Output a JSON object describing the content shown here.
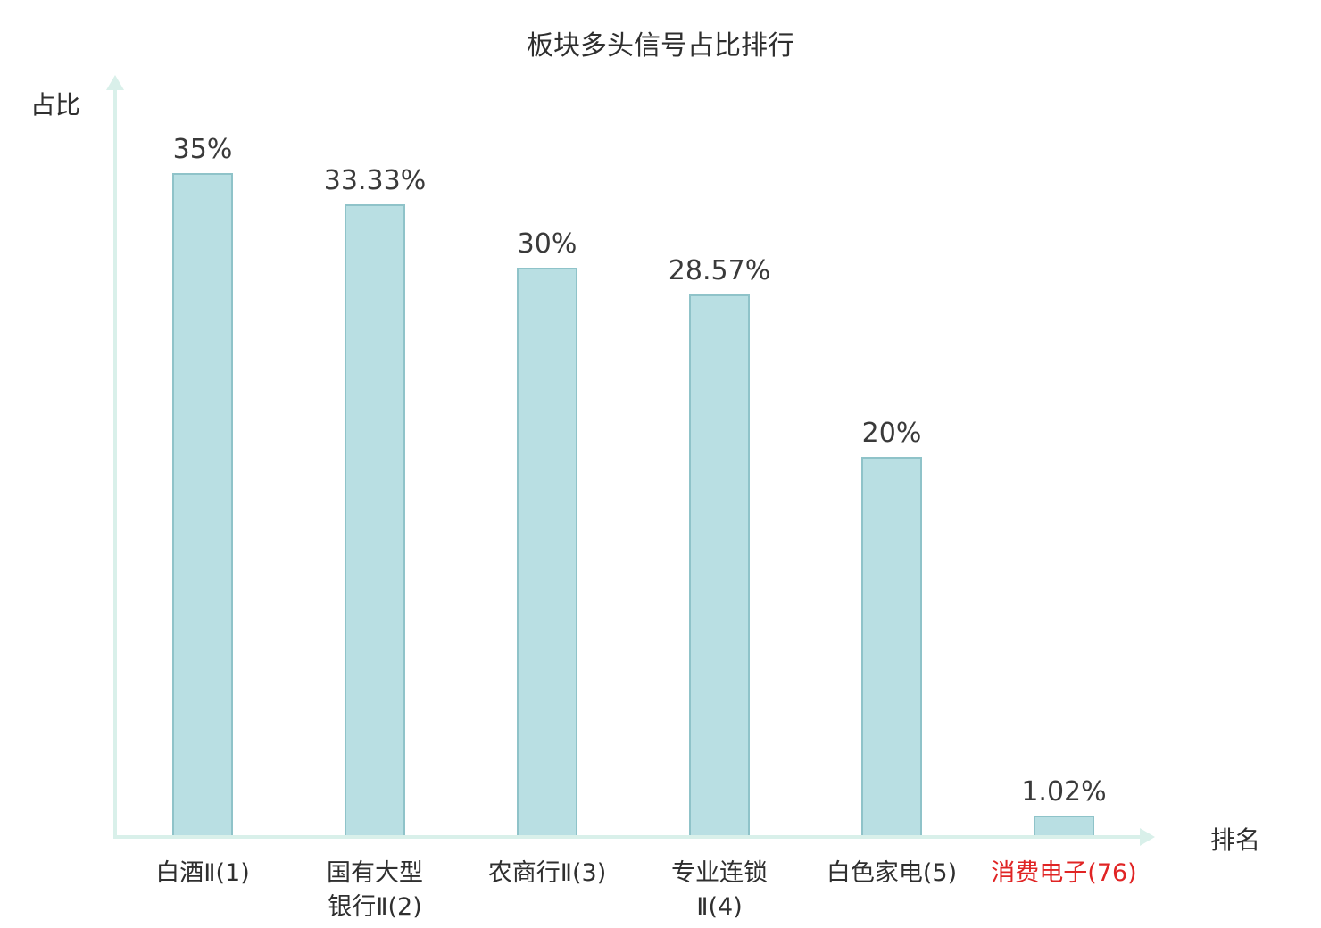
{
  "chart_data": {
    "type": "bar",
    "title": "板块多头信号占比排行",
    "xlabel": "排名",
    "ylabel": "占比",
    "categories": [
      "白酒Ⅱ(1)",
      "国有大型银行Ⅱ(2)",
      "农商行Ⅱ(3)",
      "专业连锁Ⅱ(4)",
      "白色家电(5)",
      "消费电子(76)"
    ],
    "category_lines": [
      [
        "白酒Ⅱ(1)"
      ],
      [
        "国有大型",
        "银行Ⅱ(2)"
      ],
      [
        "农商行Ⅱ(3)"
      ],
      [
        "专业连锁",
        "Ⅱ(4)"
      ],
      [
        "白色家电(5)"
      ],
      [
        "消费电子(76)"
      ]
    ],
    "values": [
      35,
      33.33,
      30,
      28.57,
      20,
      1.02
    ],
    "value_labels": [
      "35%",
      "33.33%",
      "30%",
      "28.57%",
      "20%",
      "1.02%"
    ],
    "highlight_index": 5,
    "highlight_color": "#e02424",
    "bar_fill": "#b9dfe3",
    "bar_border": "#8fc3c9",
    "axis_color": "#d9f0ea",
    "text_color": "#2f2f2f",
    "ylim": [
      0,
      35
    ],
    "grid": false,
    "legend": false
  }
}
